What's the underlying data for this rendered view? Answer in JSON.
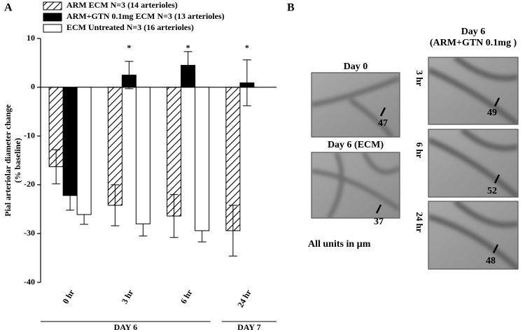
{
  "chart_data": {
    "type": "bar",
    "panel_label": "A",
    "ylabel": [
      "Pial arteriolar diameter change",
      "(% baseline)"
    ],
    "categories": [
      "0 hr",
      "3 hr",
      "6 hr",
      "24 hr"
    ],
    "group_labels": [
      "DAY 6",
      "DAY 7"
    ],
    "significance": [
      null,
      "*",
      "*",
      "*"
    ],
    "series": [
      {
        "name": "ARM ECM N=3 (14 arterioles)",
        "color": "#000000",
        "pattern": "hatch",
        "values": [
          -16.3,
          -24.2,
          -26.4,
          -29.4
        ],
        "errors": [
          3.5,
          4.2,
          4.4,
          5.2
        ]
      },
      {
        "name": "ARM+GTN 0.1mg ECM N=3 (13 arterioles)",
        "color": "#000000",
        "pattern": "solid",
        "values": [
          -22.2,
          2.5,
          4.5,
          0.9
        ],
        "errors": [
          3.0,
          2.8,
          2.8,
          4.7
        ]
      },
      {
        "name": "ECM Untreated N=3 (16 arterioles)",
        "color": "#ffffff",
        "pattern": "open",
        "values": [
          -26.1,
          -28.0,
          -29.4,
          null
        ],
        "errors": [
          2.0,
          2.5,
          2.3,
          null
        ]
      }
    ],
    "ylim": [
      -40,
      10
    ],
    "yticks": [
      -40,
      -30,
      -20,
      -10,
      0,
      10
    ]
  },
  "panel_b": {
    "panel_label": "B",
    "left": [
      {
        "title": "Day 0",
        "measure": 47
      },
      {
        "title": "Day 6 (ECM)",
        "measure": 37
      }
    ],
    "note": "All units in µm",
    "right_title": [
      "Day 6",
      "(ARM+GTN 0.1mg )"
    ],
    "right": [
      {
        "title": "3 hr",
        "measure": 49
      },
      {
        "title": "6 hr",
        "measure": 52
      },
      {
        "title": "24 hr",
        "measure": 48
      }
    ]
  }
}
